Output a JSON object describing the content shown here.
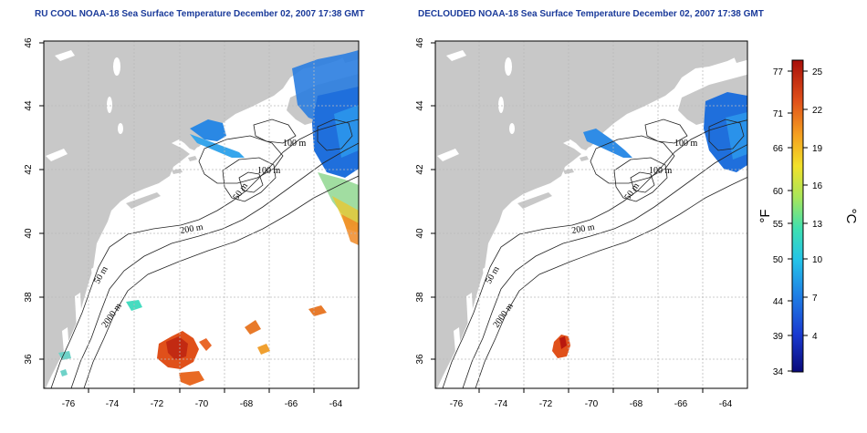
{
  "panels": [
    {
      "id": "left",
      "title": "RU COOL NOAA-18 Sea Surface Temperature December 02, 2007 17:38 GMT"
    },
    {
      "id": "right",
      "title": "DECLOUDED NOAA-18 Sea Surface Temperature December 02, 2007 17:38 GMT"
    }
  ],
  "axes": {
    "x_ticks": [
      "-76",
      "-74",
      "-72",
      "-70",
      "-68",
      "-66",
      "-64"
    ],
    "y_ticks": [
      "46",
      "44",
      "42",
      "40",
      "38",
      "36"
    ],
    "x_range": [
      -77,
      -63
    ],
    "y_range": [
      35,
      46
    ]
  },
  "contour_labels": [
    "100 m",
    "100 m",
    "50 m",
    "200 m",
    "50 m",
    "2000 m"
  ],
  "colorbar": {
    "unit_f": "°F",
    "unit_c": "°C",
    "f_labels": [
      "77",
      "71",
      "66",
      "60",
      "55",
      "50",
      "44",
      "39",
      "34"
    ],
    "c_labels": [
      "25",
      "22",
      "19",
      "16",
      "13",
      "10",
      "7",
      "4"
    ]
  },
  "colors": {
    "land": "#c8c8c8",
    "ocean": "#ffffff",
    "grid": "#bbbbbb",
    "title": "#1a3a9a",
    "scale": [
      "#0a0a7a",
      "#1a3ad0",
      "#1f82e6",
      "#24c4e8",
      "#3fe0b0",
      "#a8e65a",
      "#f2e12a",
      "#f5a020",
      "#e0501a",
      "#a80f0a"
    ]
  }
}
